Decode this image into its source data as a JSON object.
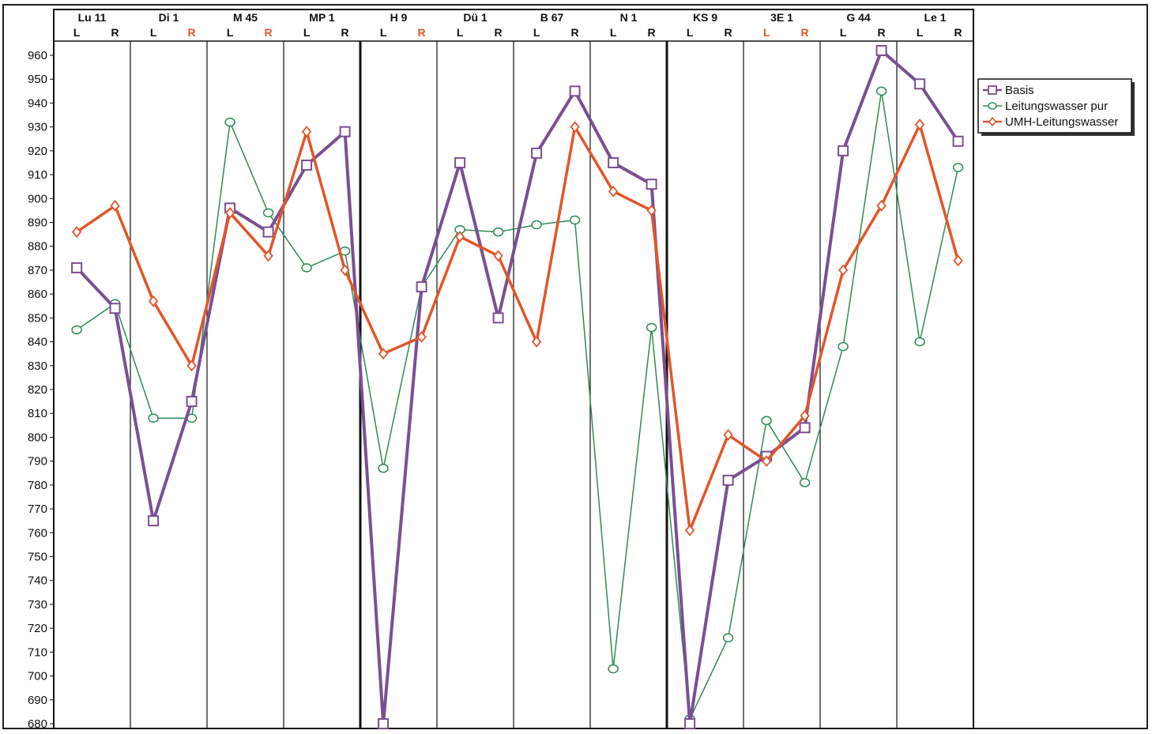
{
  "chart_data": {
    "type": "line",
    "title": "",
    "xlabel": "",
    "ylabel": "",
    "ylim": [
      680,
      965
    ],
    "yticks": [
      960,
      950,
      940,
      930,
      920,
      910,
      900,
      890,
      880,
      870,
      860,
      850,
      840,
      830,
      820,
      810,
      800,
      790,
      780,
      770,
      760,
      750,
      740,
      730,
      720,
      710,
      700,
      690,
      680
    ],
    "grid": false,
    "legend_position": "right",
    "groups": [
      {
        "name": "Lu 11",
        "sides": [
          {
            "label": "L",
            "highlight": false
          },
          {
            "label": "R",
            "highlight": false
          }
        ]
      },
      {
        "name": "Di 1",
        "sides": [
          {
            "label": "L",
            "highlight": false
          },
          {
            "label": "R",
            "highlight": true
          }
        ]
      },
      {
        "name": "M 45",
        "sides": [
          {
            "label": "L",
            "highlight": false
          },
          {
            "label": "R",
            "highlight": true
          }
        ]
      },
      {
        "name": "MP 1",
        "sides": [
          {
            "label": "L",
            "highlight": false
          },
          {
            "label": "R",
            "highlight": false
          }
        ]
      },
      {
        "name": "H 9",
        "sides": [
          {
            "label": "L",
            "highlight": false
          },
          {
            "label": "R",
            "highlight": true
          }
        ]
      },
      {
        "name": "Dü 1",
        "sides": [
          {
            "label": "L",
            "highlight": false
          },
          {
            "label": "R",
            "highlight": false
          }
        ]
      },
      {
        "name": "B 67",
        "sides": [
          {
            "label": "L",
            "highlight": false
          },
          {
            "label": "R",
            "highlight": false
          }
        ]
      },
      {
        "name": "N 1",
        "sides": [
          {
            "label": "L",
            "highlight": false
          },
          {
            "label": "R",
            "highlight": false
          }
        ]
      },
      {
        "name": "KS 9",
        "sides": [
          {
            "label": "L",
            "highlight": false
          },
          {
            "label": "R",
            "highlight": false
          }
        ]
      },
      {
        "name": "3E 1",
        "sides": [
          {
            "label": "L",
            "highlight": true
          },
          {
            "label": "R",
            "highlight": true
          }
        ]
      },
      {
        "name": "G 44",
        "sides": [
          {
            "label": "L",
            "highlight": false
          },
          {
            "label": "R",
            "highlight": false
          }
        ]
      },
      {
        "name": "Le 1",
        "sides": [
          {
            "label": "L",
            "highlight": false
          },
          {
            "label": "R",
            "highlight": false
          }
        ]
      }
    ],
    "series": [
      {
        "name": "Basis",
        "marker": "square",
        "color": "#7b4f93",
        "values": [
          871,
          854,
          765,
          815,
          896,
          886,
          914,
          928,
          680,
          863,
          915,
          850,
          919,
          945,
          915,
          906,
          680,
          782,
          792,
          804,
          920,
          962,
          948,
          924
        ]
      },
      {
        "name": "Leitungswasser pur",
        "marker": "circle",
        "color": "#2e8b57",
        "values": [
          845,
          856,
          808,
          808,
          932,
          894,
          871,
          878,
          787,
          863,
          887,
          886,
          889,
          891,
          703,
          846,
          682,
          716,
          807,
          781,
          838,
          945,
          840,
          913
        ]
      },
      {
        "name": "UMH-Leitungswasser",
        "marker": "diamond",
        "color": "#e1562a",
        "values": [
          886,
          897,
          857,
          830,
          894,
          876,
          928,
          870,
          835,
          842,
          884,
          876,
          840,
          930,
          903,
          895,
          761,
          801,
          790,
          809,
          870,
          897,
          931,
          874
        ]
      }
    ],
    "colors": {
      "highlight_label": "#e1562a",
      "axis": "#111111"
    }
  }
}
